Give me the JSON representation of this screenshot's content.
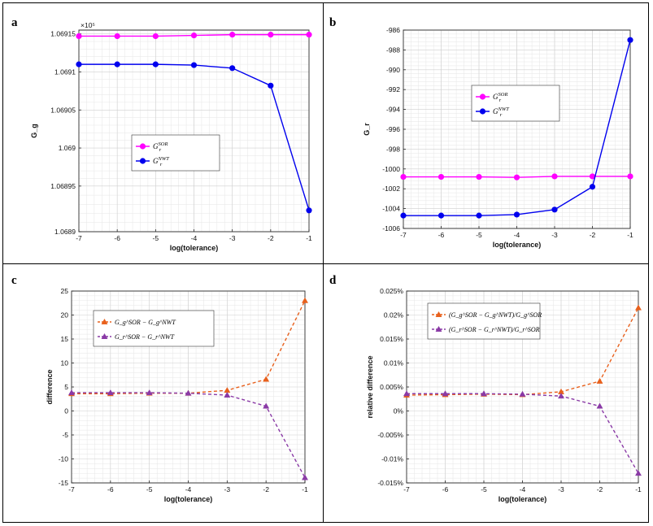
{
  "chart_data": [
    {
      "panel_label": "a",
      "type": "line",
      "xlabel": "log(tolerance)",
      "ylabel": "G_g",
      "exponent_label": "×10⁵",
      "xlim": [
        -7,
        -1
      ],
      "ylim": [
        1.06889,
        1.069155
      ],
      "xticks": [
        -7,
        -6,
        -5,
        -4,
        -3,
        -2,
        -1
      ],
      "yticks": [
        1.06889,
        1.06895,
        1.069,
        1.06905,
        1.0691,
        1.06915
      ],
      "ytick_labels": [
        "1.0689",
        "1.06895",
        "1.069",
        "1.06905",
        "1.0691",
        "1.06915"
      ],
      "x": [
        -7,
        -6,
        -5,
        -4,
        -3,
        -2,
        -1
      ],
      "series": [
        {
          "name": "G_r^SOR",
          "legend_main": "G",
          "legend_sub": "r",
          "legend_sup": "SOR",
          "color": "#ff00ff",
          "marker": "circle",
          "dash": "solid",
          "values": [
            1.069147,
            1.069147,
            1.069147,
            1.069148,
            1.069149,
            1.069149,
            1.069149
          ]
        },
        {
          "name": "G_r^NWT",
          "legend_main": "G",
          "legend_sub": "r",
          "legend_sup": "NWT",
          "color": "#0000ee",
          "marker": "circle",
          "dash": "solid",
          "values": [
            1.06911,
            1.06911,
            1.06911,
            1.069109,
            1.069105,
            1.069082,
            1.068918
          ]
        }
      ],
      "legend_position": "center-left"
    },
    {
      "panel_label": "b",
      "type": "line",
      "xlabel": "log(tolerance)",
      "ylabel": "G_r",
      "xlim": [
        -7,
        -1
      ],
      "ylim": [
        -1006,
        -986
      ],
      "xticks": [
        -7,
        -6,
        -5,
        -4,
        -3,
        -2,
        -1
      ],
      "yticks": [
        -1006,
        -1004,
        -1002,
        -1000,
        -998,
        -996,
        -994,
        -992,
        -990,
        -988,
        -986
      ],
      "ytick_labels": [
        "-1006",
        "-1004",
        "-1002",
        "-1000",
        "-998",
        "-996",
        "-994",
        "-992",
        "-990",
        "-988",
        "-986"
      ],
      "x": [
        -7,
        -6,
        -5,
        -4,
        -3,
        -2,
        -1
      ],
      "series": [
        {
          "name": "G_r^SOR",
          "legend_main": "G",
          "legend_sub": "r",
          "legend_sup": "SOR",
          "color": "#ff00ff",
          "marker": "circle",
          "dash": "solid",
          "values": [
            -1000.8,
            -1000.8,
            -1000.8,
            -1000.85,
            -1000.75,
            -1000.75,
            -1000.75
          ]
        },
        {
          "name": "G_r^NWT",
          "legend_main": "G",
          "legend_sub": "r",
          "legend_sup": "NWT",
          "color": "#0000ee",
          "marker": "circle",
          "dash": "solid",
          "values": [
            -1004.7,
            -1004.7,
            -1004.7,
            -1004.6,
            -1004.1,
            -1001.8,
            -987.0
          ]
        }
      ],
      "legend_position": "top-left"
    },
    {
      "panel_label": "c",
      "type": "line",
      "xlabel": "log(tolerance)",
      "ylabel": "difference",
      "xlim": [
        -7,
        -1
      ],
      "ylim": [
        -15,
        25
      ],
      "xticks": [
        -7,
        -6,
        -5,
        -4,
        -3,
        -2,
        -1
      ],
      "yticks": [
        -15,
        -10,
        -5,
        0,
        5,
        10,
        15,
        20,
        25
      ],
      "ytick_labels": [
        "-15",
        "-10",
        "-5",
        "0",
        "5",
        "10",
        "15",
        "20",
        "25"
      ],
      "x": [
        -7,
        -6,
        -5,
        -4,
        -3,
        -2,
        -1
      ],
      "series": [
        {
          "name": "G_g^SOR - G_g^NWT",
          "legend_text": "G_g^SOR − G_g^NWT",
          "color": "#e8601c",
          "marker": "triangle",
          "dash": "dashed",
          "values": [
            3.6,
            3.6,
            3.7,
            3.7,
            4.3,
            6.6,
            23.0
          ]
        },
        {
          "name": "G_r^SOR - G_r^NWT",
          "legend_text": "G_r^SOR − G_r^NWT",
          "color": "#8a3aa6",
          "marker": "triangle",
          "dash": "dashed",
          "values": [
            3.8,
            3.8,
            3.8,
            3.7,
            3.3,
            1.0,
            -13.9
          ]
        }
      ],
      "legend_position": "top-left"
    },
    {
      "panel_label": "d",
      "type": "line",
      "xlabel": "log(tolerance)",
      "ylabel": "relative difference",
      "xlim": [
        -7,
        -1
      ],
      "ylim": [
        -0.015,
        0.025
      ],
      "xticks": [
        -7,
        -6,
        -5,
        -4,
        -3,
        -2,
        -1
      ],
      "yticks": [
        -0.015,
        -0.01,
        -0.005,
        0,
        0.005,
        0.01,
        0.015,
        0.02,
        0.025
      ],
      "ytick_labels": [
        "-0.015%",
        "-0.01%",
        "-0.005%",
        "0%",
        "0.005%",
        "0.01%",
        "0.015%",
        "0.02%",
        "0.025%"
      ],
      "x": [
        -7,
        -6,
        -5,
        -4,
        -3,
        -2,
        -1
      ],
      "series": [
        {
          "name": "(G_g^SOR - G_g^NWT)/G_g^SOR",
          "legend_text": "(G_g^SOR − G_g^NWT)/G_g^SOR",
          "color": "#e8601c",
          "marker": "triangle",
          "dash": "dashed",
          "values": [
            0.0033,
            0.0034,
            0.0035,
            0.0034,
            0.004,
            0.0062,
            0.0215
          ]
        },
        {
          "name": "(G_r^SOR - G_r^NWT)/G_r^SOR",
          "legend_text": "(G_r^SOR − G_r^NWT)/G_r^SOR",
          "color": "#8a3aa6",
          "marker": "triangle",
          "dash": "dashed",
          "values": [
            0.0036,
            0.0036,
            0.0036,
            0.0035,
            0.0031,
            0.001,
            -0.013
          ]
        }
      ],
      "legend_position": "top-left"
    }
  ]
}
